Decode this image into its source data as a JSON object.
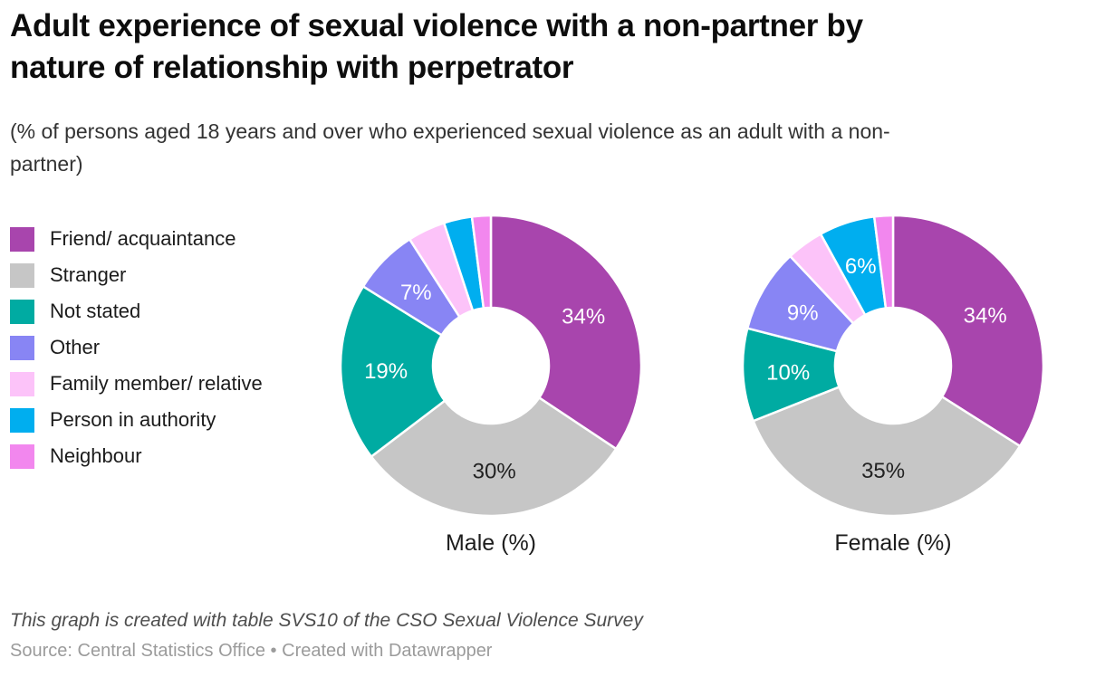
{
  "header": {
    "title": "Adult experience of sexual violence with a non-partner by\nnature of relationship with perpetrator",
    "subtitle": "(% of persons aged 18 years and over who experienced sexual violence as an adult with a non-\npartner)"
  },
  "chart_data": {
    "type": "pie",
    "variant": "donut",
    "title": "Adult experience of sexual violence with a non-partner by nature of relationship with perpetrator",
    "subtitle": "(% of persons aged 18 years and over who experienced sexual violence as an adult with a non-partner)",
    "legend_position": "left",
    "direction": "clockwise",
    "start_angle_deg": 0,
    "categories": [
      "Friend/ acquaintance",
      "Stranger",
      "Not stated",
      "Other",
      "Family member/ relative",
      "Person in authority",
      "Neighbour"
    ],
    "colors": [
      "#a845ad",
      "#c6c6c6",
      "#00aba2",
      "#8885f4",
      "#fcc3f9",
      "#00aeef",
      "#f287ee"
    ],
    "label_text_colors": [
      "#ffffff",
      "#222222",
      "#ffffff",
      "#ffffff",
      "#222222",
      "#ffffff",
      "#ffffff"
    ],
    "series": [
      {
        "name": "Male (%)",
        "values": [
          34,
          30,
          19,
          7,
          4,
          3,
          2
        ],
        "slice_labels": [
          "34%",
          "30%",
          "19%",
          "7%",
          "",
          "",
          ""
        ]
      },
      {
        "name": "Female (%)",
        "values": [
          34,
          35,
          10,
          9,
          4,
          6,
          2
        ],
        "slice_labels": [
          "34%",
          "35%",
          "10%",
          "9%",
          "",
          "6%",
          ""
        ]
      }
    ]
  },
  "footer": {
    "note": "This graph is created with table SVS10 of the CSO Sexual Violence Survey",
    "source_prefix": "Source:",
    "source_name": "Central Statistics Office",
    "separator": "•",
    "created_with": "Created with",
    "creator_name": "Datawrapper"
  }
}
